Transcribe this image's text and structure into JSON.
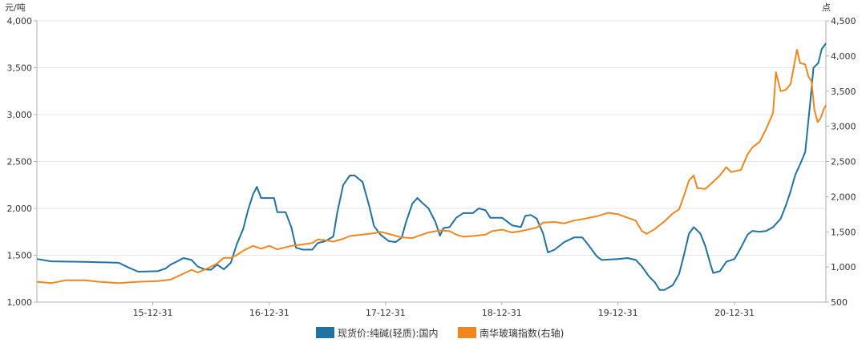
{
  "chart_data": {
    "type": "line",
    "left_axis": {
      "unit": "元/吨",
      "ylim": [
        1000,
        4000
      ],
      "ticks": [
        "1,000",
        "1,500",
        "2,000",
        "2,500",
        "3,000",
        "3,500",
        "4,000"
      ]
    },
    "right_axis": {
      "unit": "点",
      "ylim": [
        500,
        4500
      ],
      "ticks": [
        "500",
        "1,000",
        "1,500",
        "2,000",
        "2,500",
        "3,000",
        "3,500",
        "4,000",
        "4,500"
      ]
    },
    "x_axis": {
      "range": [
        "2015-01-01",
        "2021-10-14"
      ],
      "tick_labels": [
        "15-12-31",
        "16-12-31",
        "17-12-31",
        "18-12-31",
        "19-12-31",
        "20-12-31"
      ],
      "tick_dates": [
        "2015-12-31",
        "2016-12-31",
        "2017-12-31",
        "2018-12-31",
        "2019-12-31",
        "2020-12-31"
      ]
    },
    "grid": "horizontal",
    "legend_position": "bottom",
    "series": [
      {
        "name": "现货价:纯碱(轻质):国内",
        "axis": "left",
        "color": "#2171a1",
        "points": [
          [
            "2015-01-01",
            1460
          ],
          [
            "2015-02-15",
            1435
          ],
          [
            "2015-06-01",
            1430
          ],
          [
            "2015-09-15",
            1420
          ],
          [
            "2015-10-15",
            1370
          ],
          [
            "2015-11-15",
            1325
          ],
          [
            "2016-01-15",
            1330
          ],
          [
            "2016-02-10",
            1360
          ],
          [
            "2016-02-25",
            1400
          ],
          [
            "2016-03-20",
            1440
          ],
          [
            "2016-04-05",
            1470
          ],
          [
            "2016-05-01",
            1450
          ],
          [
            "2016-05-20",
            1380
          ],
          [
            "2016-06-10",
            1350
          ],
          [
            "2016-07-01",
            1345
          ],
          [
            "2016-07-20",
            1400
          ],
          [
            "2016-08-10",
            1350
          ],
          [
            "2016-09-01",
            1420
          ],
          [
            "2016-09-20",
            1620
          ],
          [
            "2016-10-10",
            1780
          ],
          [
            "2016-10-25",
            1980
          ],
          [
            "2016-11-10",
            2150
          ],
          [
            "2016-11-22",
            2230
          ],
          [
            "2016-12-05",
            2110
          ],
          [
            "2016-12-31",
            2110
          ],
          [
            "2017-01-15",
            2110
          ],
          [
            "2017-01-25",
            1960
          ],
          [
            "2017-02-20",
            1960
          ],
          [
            "2017-03-10",
            1800
          ],
          [
            "2017-03-25",
            1580
          ],
          [
            "2017-04-15",
            1560
          ],
          [
            "2017-05-15",
            1560
          ],
          [
            "2017-06-01",
            1630
          ],
          [
            "2017-06-25",
            1650
          ],
          [
            "2017-07-20",
            1700
          ],
          [
            "2017-08-01",
            1950
          ],
          [
            "2017-08-20",
            2250
          ],
          [
            "2017-09-10",
            2350
          ],
          [
            "2017-09-25",
            2350
          ],
          [
            "2017-10-20",
            2280
          ],
          [
            "2017-11-10",
            2020
          ],
          [
            "2017-11-25",
            1810
          ],
          [
            "2017-12-15",
            1720
          ],
          [
            "2018-01-10",
            1650
          ],
          [
            "2018-02-01",
            1640
          ],
          [
            "2018-02-20",
            1690
          ],
          [
            "2018-03-05",
            1850
          ],
          [
            "2018-03-25",
            2050
          ],
          [
            "2018-04-10",
            2110
          ],
          [
            "2018-04-25",
            2060
          ],
          [
            "2018-05-15",
            2000
          ],
          [
            "2018-06-05",
            1860
          ],
          [
            "2018-06-20",
            1710
          ],
          [
            "2018-07-01",
            1790
          ],
          [
            "2018-07-20",
            1800
          ],
          [
            "2018-08-10",
            1900
          ],
          [
            "2018-09-01",
            1950
          ],
          [
            "2018-10-01",
            1950
          ],
          [
            "2018-10-20",
            2000
          ],
          [
            "2018-11-10",
            1980
          ],
          [
            "2018-11-25",
            1900
          ],
          [
            "2019-01-01",
            1900
          ],
          [
            "2019-02-01",
            1820
          ],
          [
            "2019-03-01",
            1800
          ],
          [
            "2019-03-15",
            1920
          ],
          [
            "2019-04-01",
            1930
          ],
          [
            "2019-04-20",
            1890
          ],
          [
            "2019-05-10",
            1730
          ],
          [
            "2019-05-25",
            1530
          ],
          [
            "2019-06-15",
            1560
          ],
          [
            "2019-07-15",
            1640
          ],
          [
            "2019-08-15",
            1690
          ],
          [
            "2019-09-10",
            1690
          ],
          [
            "2019-10-01",
            1600
          ],
          [
            "2019-10-25",
            1490
          ],
          [
            "2019-11-10",
            1450
          ],
          [
            "2019-12-31",
            1460
          ],
          [
            "2020-01-30",
            1470
          ],
          [
            "2020-02-25",
            1450
          ],
          [
            "2020-03-15",
            1380
          ],
          [
            "2020-04-05",
            1280
          ],
          [
            "2020-04-25",
            1210
          ],
          [
            "2020-05-10",
            1130
          ],
          [
            "2020-05-25",
            1130
          ],
          [
            "2020-06-20",
            1180
          ],
          [
            "2020-07-10",
            1300
          ],
          [
            "2020-07-25",
            1500
          ],
          [
            "2020-08-10",
            1730
          ],
          [
            "2020-08-25",
            1800
          ],
          [
            "2020-09-15",
            1730
          ],
          [
            "2020-09-30",
            1600
          ],
          [
            "2020-10-15",
            1420
          ],
          [
            "2020-10-25",
            1310
          ],
          [
            "2020-11-15",
            1330
          ],
          [
            "2020-12-05",
            1430
          ],
          [
            "2020-12-31",
            1460
          ],
          [
            "2021-01-20",
            1580
          ],
          [
            "2021-02-10",
            1720
          ],
          [
            "2021-02-25",
            1760
          ],
          [
            "2021-03-20",
            1750
          ],
          [
            "2021-04-10",
            1760
          ],
          [
            "2021-05-01",
            1800
          ],
          [
            "2021-05-25",
            1890
          ],
          [
            "2021-06-10",
            2030
          ],
          [
            "2021-06-25",
            2180
          ],
          [
            "2021-07-10",
            2360
          ],
          [
            "2021-07-25",
            2470
          ],
          [
            "2021-08-10",
            2600
          ],
          [
            "2021-08-25",
            3100
          ],
          [
            "2021-09-05",
            3500
          ],
          [
            "2021-09-20",
            3550
          ],
          [
            "2021-10-01",
            3700
          ],
          [
            "2021-10-14",
            3760
          ]
        ]
      },
      {
        "name": "南华玻璃指数(右轴)",
        "axis": "right",
        "color": "#f0861e",
        "points": [
          [
            "2015-01-01",
            790
          ],
          [
            "2015-02-15",
            770
          ],
          [
            "2015-04-01",
            810
          ],
          [
            "2015-06-01",
            810
          ],
          [
            "2015-07-15",
            790
          ],
          [
            "2015-09-15",
            770
          ],
          [
            "2015-11-15",
            790
          ],
          [
            "2016-01-15",
            800
          ],
          [
            "2016-02-25",
            820
          ],
          [
            "2016-03-20",
            870
          ],
          [
            "2016-05-01",
            960
          ],
          [
            "2016-05-20",
            920
          ],
          [
            "2016-06-25",
            990
          ],
          [
            "2016-07-20",
            1050
          ],
          [
            "2016-08-10",
            1130
          ],
          [
            "2016-09-01",
            1130
          ],
          [
            "2016-09-20",
            1170
          ],
          [
            "2016-10-10",
            1230
          ],
          [
            "2016-11-10",
            1300
          ],
          [
            "2016-12-05",
            1260
          ],
          [
            "2016-12-31",
            1300
          ],
          [
            "2017-01-25",
            1250
          ],
          [
            "2017-03-10",
            1300
          ],
          [
            "2017-04-15",
            1320
          ],
          [
            "2017-05-15",
            1340
          ],
          [
            "2017-06-01",
            1390
          ],
          [
            "2017-06-25",
            1380
          ],
          [
            "2017-07-20",
            1360
          ],
          [
            "2017-08-20",
            1400
          ],
          [
            "2017-09-10",
            1440
          ],
          [
            "2017-10-20",
            1460
          ],
          [
            "2017-11-25",
            1480
          ],
          [
            "2017-12-15",
            1500
          ],
          [
            "2018-01-10",
            1470
          ],
          [
            "2018-02-20",
            1420
          ],
          [
            "2018-03-25",
            1410
          ],
          [
            "2018-04-25",
            1460
          ],
          [
            "2018-05-15",
            1490
          ],
          [
            "2018-06-20",
            1520
          ],
          [
            "2018-07-20",
            1510
          ],
          [
            "2018-08-10",
            1460
          ],
          [
            "2018-09-01",
            1430
          ],
          [
            "2018-10-01",
            1440
          ],
          [
            "2018-11-10",
            1460
          ],
          [
            "2018-12-01",
            1510
          ],
          [
            "2019-01-01",
            1530
          ],
          [
            "2019-02-01",
            1490
          ],
          [
            "2019-03-01",
            1510
          ],
          [
            "2019-04-01",
            1540
          ],
          [
            "2019-04-20",
            1560
          ],
          [
            "2019-05-10",
            1630
          ],
          [
            "2019-06-15",
            1640
          ],
          [
            "2019-07-15",
            1620
          ],
          [
            "2019-08-15",
            1660
          ],
          [
            "2019-09-10",
            1680
          ],
          [
            "2019-10-25",
            1720
          ],
          [
            "2019-12-01",
            1770
          ],
          [
            "2019-12-31",
            1750
          ],
          [
            "2020-01-30",
            1700
          ],
          [
            "2020-02-25",
            1660
          ],
          [
            "2020-03-15",
            1510
          ],
          [
            "2020-03-30",
            1470
          ],
          [
            "2020-04-25",
            1540
          ],
          [
            "2020-05-25",
            1650
          ],
          [
            "2020-06-20",
            1760
          ],
          [
            "2020-07-10",
            1820
          ],
          [
            "2020-07-25",
            2010
          ],
          [
            "2020-08-10",
            2230
          ],
          [
            "2020-08-25",
            2300
          ],
          [
            "2020-09-05",
            2120
          ],
          [
            "2020-09-30",
            2110
          ],
          [
            "2020-10-25",
            2210
          ],
          [
            "2020-11-15",
            2300
          ],
          [
            "2020-12-05",
            2420
          ],
          [
            "2020-12-20",
            2350
          ],
          [
            "2021-01-20",
            2380
          ],
          [
            "2021-02-10",
            2600
          ],
          [
            "2021-02-25",
            2700
          ],
          [
            "2021-03-20",
            2780
          ],
          [
            "2021-04-10",
            2970
          ],
          [
            "2021-05-01",
            3190
          ],
          [
            "2021-05-10",
            3770
          ],
          [
            "2021-05-25",
            3500
          ],
          [
            "2021-06-10",
            3520
          ],
          [
            "2021-06-25",
            3600
          ],
          [
            "2021-07-05",
            3840
          ],
          [
            "2021-07-15",
            4090
          ],
          [
            "2021-07-25",
            3900
          ],
          [
            "2021-08-10",
            3880
          ],
          [
            "2021-08-20",
            3710
          ],
          [
            "2021-08-30",
            3640
          ],
          [
            "2021-09-08",
            3230
          ],
          [
            "2021-09-18",
            3060
          ],
          [
            "2021-09-28",
            3120
          ],
          [
            "2021-10-08",
            3250
          ],
          [
            "2021-10-14",
            3300
          ]
        ]
      }
    ]
  }
}
